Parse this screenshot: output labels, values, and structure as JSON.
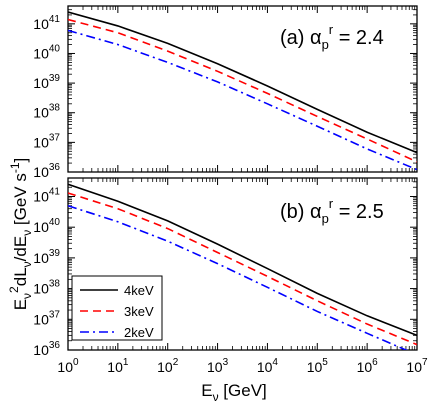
{
  "chart_data": [
    {
      "type": "line",
      "panel_label": "(a) α",
      "panel_label_sub": "p",
      "panel_label_sup": "r",
      "panel_label_value": " = 2.4",
      "x_scale": "log",
      "y_scale": "log",
      "xlim": [
        1,
        10000000
      ],
      "ylim": [
        1e+36,
        4e+41
      ],
      "grid": false,
      "series": [
        {
          "name": "4keV",
          "color": "#000000",
          "dash": "solid",
          "x": [
            1,
            10,
            100,
            1000,
            10000,
            100000,
            1000000,
            10000000
          ],
          "y": [
            2.5e+41,
            8.5e+40,
            2.2e+40,
            4.5e+39,
            8e+38,
            1.3e+38,
            2.2e+37,
            4.5e+36
          ]
        },
        {
          "name": "3keV",
          "color": "#ff0000",
          "dash": "dashed",
          "x": [
            1,
            10,
            100,
            1000,
            10000,
            100000,
            1000000,
            10000000
          ],
          "y": [
            1.4e+41,
            5e+40,
            1.2e+40,
            2.5e+39,
            4.5e+38,
            7.5e+37,
            1.3e+37,
            2.2e+36
          ]
        },
        {
          "name": "2keV",
          "color": "#0000ff",
          "dash": "dashdot",
          "x": [
            1,
            10,
            100,
            1000,
            10000,
            100000,
            1000000,
            10000000
          ],
          "y": [
            6e+40,
            2e+40,
            5e+39,
            1.1e+39,
            2e+38,
            3.5e+37,
            6e+36,
            1.2e+36
          ]
        }
      ]
    },
    {
      "type": "line",
      "panel_label": "(b) α",
      "panel_label_sub": "p",
      "panel_label_sup": "r",
      "panel_label_value": " = 2.5",
      "x_scale": "log",
      "y_scale": "log",
      "xlim": [
        1,
        10000000
      ],
      "ylim": [
        1e+36,
        4e+41
      ],
      "grid": false,
      "legend_position": "bottom-left",
      "series": [
        {
          "name": "4keV",
          "color": "#000000",
          "dash": "solid",
          "x": [
            1,
            10,
            100,
            1000,
            10000,
            100000,
            1000000,
            10000000
          ],
          "y": [
            2.5e+41,
            7e+40,
            1.6e+40,
            2.8e+39,
            4.5e+38,
            7e+37,
            1.3e+37,
            3e+36
          ]
        },
        {
          "name": "3keV",
          "color": "#ff0000",
          "dash": "dashed",
          "x": [
            1,
            10,
            100,
            1000,
            10000,
            100000,
            1000000,
            10000000
          ],
          "y": [
            1.3e+41,
            4e+40,
            9e+39,
            1.5e+39,
            2.5e+38,
            4e+37,
            7e+36,
            1.5e+36
          ]
        },
        {
          "name": "2keV",
          "color": "#0000ff",
          "dash": "dashdot",
          "x": [
            1,
            10,
            100,
            1000,
            10000,
            100000,
            1000000,
            10000000
          ],
          "y": [
            5e+40,
            1.5e+40,
            3.5e+39,
            6.5e+38,
            1.1e+38,
            1.8e+37,
            3.5e+36,
            7e+35
          ]
        }
      ]
    }
  ],
  "axes": {
    "x_label_main": "E",
    "x_label_sub": "ν",
    "x_label_unit": " [GeV]",
    "y_label": "E",
    "y_label_sub1": "ν",
    "y_label_sup": "2",
    "y_label_mid": "dL",
    "y_label_sub2": "ν",
    "y_label_mid2": "/dE",
    "y_label_sub3": "ν",
    "y_label_unit": " [GeV s",
    "y_label_unit_sup": "-1",
    "y_label_close": "]",
    "x_ticks": [
      {
        "base": "10",
        "exp": "0",
        "value": 1
      },
      {
        "base": "10",
        "exp": "1",
        "value": 10
      },
      {
        "base": "10",
        "exp": "2",
        "value": 100
      },
      {
        "base": "10",
        "exp": "3",
        "value": 1000
      },
      {
        "base": "10",
        "exp": "4",
        "value": 10000
      },
      {
        "base": "10",
        "exp": "5",
        "value": 100000
      },
      {
        "base": "10",
        "exp": "6",
        "value": 1000000
      },
      {
        "base": "10",
        "exp": "7",
        "value": 10000000
      }
    ],
    "y_ticks": [
      {
        "base": "10",
        "exp": "36",
        "value": 1e+36
      },
      {
        "base": "10",
        "exp": "37",
        "value": 1e+37
      },
      {
        "base": "10",
        "exp": "38",
        "value": 1e+38
      },
      {
        "base": "10",
        "exp": "39",
        "value": 1e+39
      },
      {
        "base": "10",
        "exp": "40",
        "value": 1e+40
      },
      {
        "base": "10",
        "exp": "41",
        "value": 1e+41
      }
    ]
  }
}
